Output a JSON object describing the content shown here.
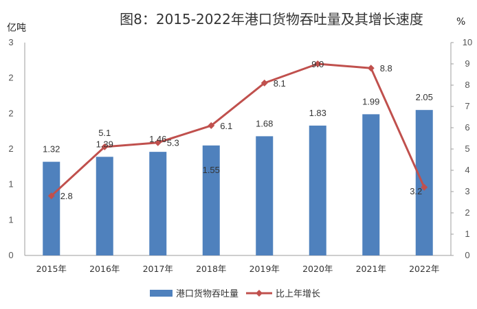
{
  "chart_data": {
    "type": "bar+line",
    "title": "图8：2015-2022年港口货物吞吐量及其增长速度",
    "y_left_unit": "亿吨",
    "y_right_unit": "%",
    "y_left_ticks": [
      "0",
      "1",
      "1",
      "2",
      "2",
      "2",
      "3"
    ],
    "y_left_range": [
      0,
      3
    ],
    "y_right_ticks": [
      "0",
      "1",
      "2",
      "3",
      "4",
      "5",
      "6",
      "7",
      "8",
      "9",
      "10"
    ],
    "y_right_range": [
      0,
      10
    ],
    "categories": [
      "2015年",
      "2016年",
      "2017年",
      "2018年",
      "2019年",
      "2020年",
      "2021年",
      "2022年"
    ],
    "series": [
      {
        "name": "港口货物吞吐量",
        "type": "bar",
        "axis": "left",
        "color": "#4f81bd",
        "values": [
          1.32,
          1.39,
          1.46,
          1.55,
          1.68,
          1.83,
          1.99,
          2.05
        ],
        "labels": [
          "1.32",
          "1.39",
          "1.46",
          "1.55",
          "1.68",
          "1.83",
          "1.99",
          "2.05"
        ]
      },
      {
        "name": "比上年增长",
        "type": "line",
        "axis": "right",
        "color": "#c0504d",
        "values": [
          2.8,
          5.1,
          5.3,
          6.1,
          8.1,
          9.0,
          8.8,
          3.2
        ],
        "labels": [
          "2.8",
          "5.1",
          "5.3",
          "6.1",
          "8.1",
          "9.0",
          "8.8",
          "3.2"
        ]
      }
    ],
    "legend_position": "bottom",
    "grid": false
  }
}
